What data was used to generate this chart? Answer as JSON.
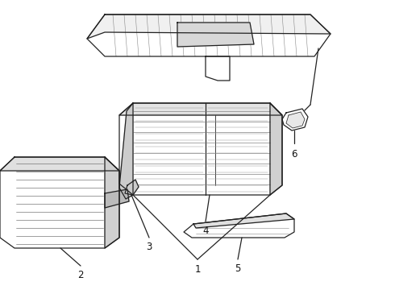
{
  "bg_color": "#ffffff",
  "line_color": "#222222",
  "label_color": "#111111",
  "label_fontsize": 8.5,
  "fig_width": 4.9,
  "fig_height": 3.6,
  "dpi": 100
}
